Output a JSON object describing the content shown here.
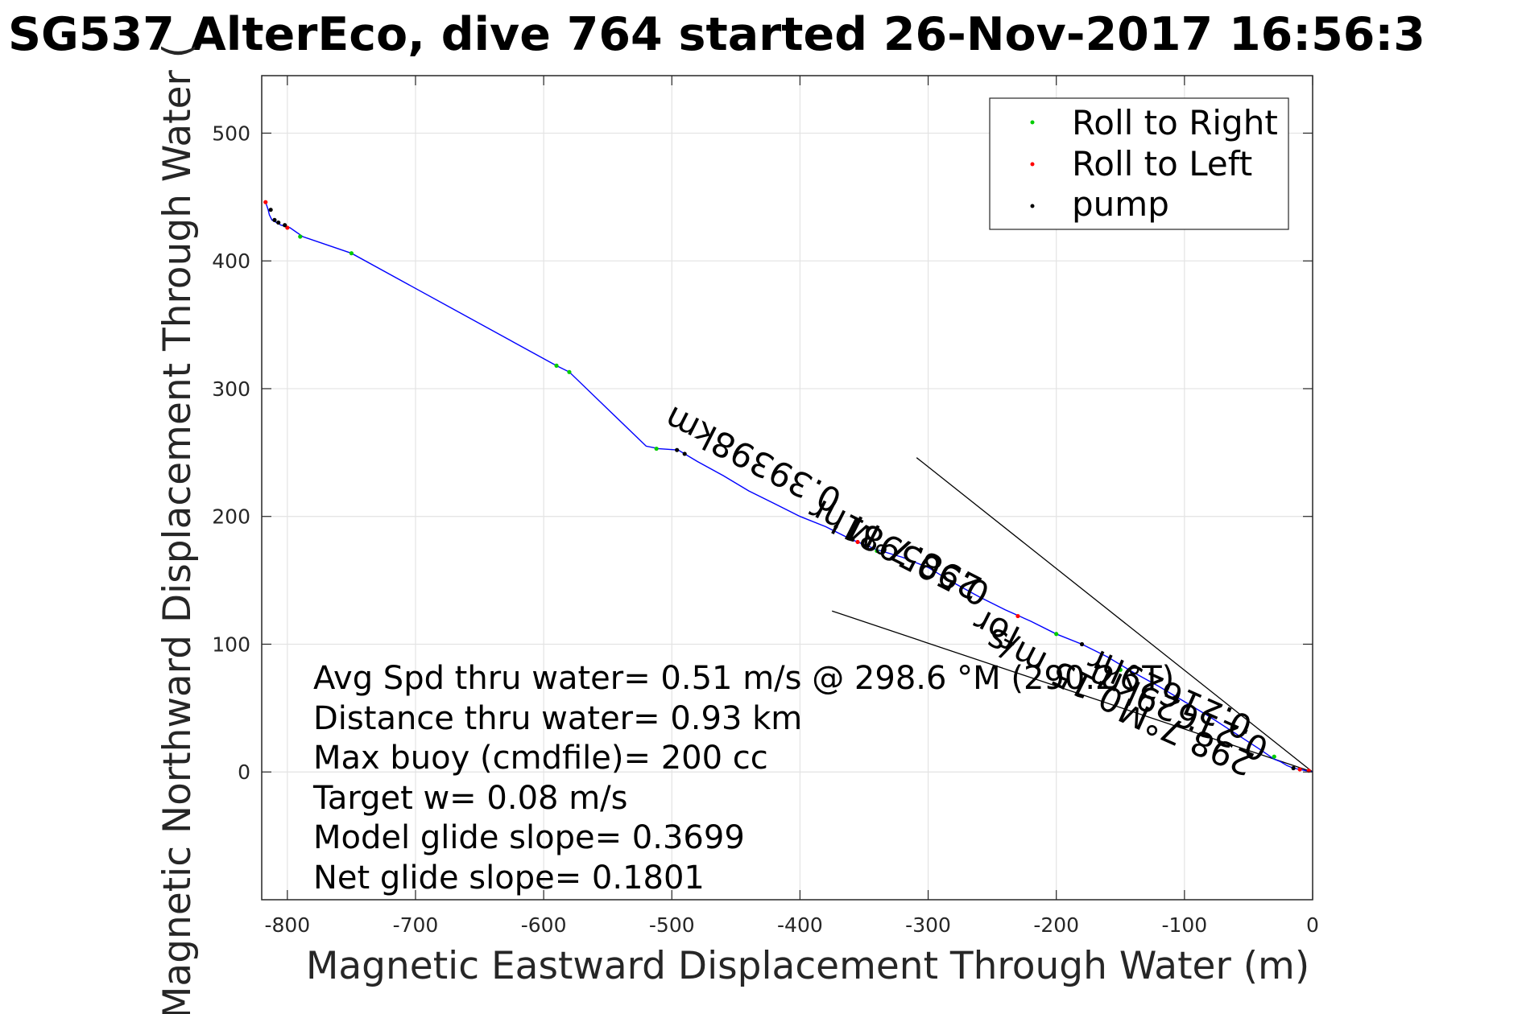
{
  "chart_data": {
    "type": "line",
    "title": "SG537 AlterEco, dive 764 started 26-Nov-2017 16:56:3",
    "xlabel": "Magnetic Eastward Displacement Through Water (m)",
    "ylabel": "Magnetic Northward Displacement Through Water (",
    "xlim": [
      -820,
      0
    ],
    "ylim": [
      -100,
      545
    ],
    "xticks": [
      -800,
      -700,
      -600,
      -500,
      -400,
      -300,
      -200,
      -100,
      0
    ],
    "yticks": [
      0,
      100,
      200,
      300,
      400,
      500
    ],
    "grid": true,
    "legend_position": "top-right",
    "legend": [
      {
        "label": "Roll to Right",
        "color": "#00cc00"
      },
      {
        "label": "Roll to Left",
        "color": "#ff0000"
      },
      {
        "label": "pump",
        "color": "#000000"
      }
    ],
    "series": [
      {
        "name": "track",
        "color": "#0000ff",
        "x": [
          0,
          -5,
          -10,
          -15,
          -20,
          -25,
          -30,
          -40,
          -60,
          -80,
          -100,
          -120,
          -140,
          -160,
          -180,
          -200,
          -220,
          -240,
          -260,
          -280,
          -300,
          -320,
          -340,
          -360,
          -380,
          -400,
          -420,
          -440,
          -460,
          -480,
          -495,
          -510,
          -520,
          -580,
          -590,
          -750,
          -788,
          -798,
          -805,
          -812,
          -814,
          -815,
          -816,
          -817
        ],
        "y": [
          0,
          1,
          2,
          3,
          5,
          8,
          10,
          17,
          30,
          43,
          55,
          67,
          78,
          90,
          100,
          108,
          118,
          127,
          137,
          148,
          160,
          168,
          174,
          182,
          192,
          200,
          210,
          220,
          232,
          243,
          252,
          253,
          255,
          313,
          318,
          406,
          419,
          426,
          428,
          432,
          436,
          440,
          443,
          446
        ]
      }
    ],
    "roll_right": {
      "x": [
        -512,
        -590,
        -580,
        -750,
        -790,
        -340,
        -200,
        -150,
        -60,
        -30
      ],
      "y": [
        253,
        318,
        313,
        406,
        419,
        173,
        108,
        80,
        35,
        12
      ]
    },
    "roll_left": {
      "x": [
        -817,
        -800,
        -355,
        -230,
        -10,
        -3
      ],
      "y": [
        446,
        426,
        180,
        122,
        2,
        1
      ]
    },
    "pump": {
      "x": [
        -813,
        -810,
        -807,
        -802,
        -496,
        -490,
        -372,
        -180,
        -15
      ],
      "y": [
        440,
        432,
        430,
        428,
        252,
        249,
        192,
        100,
        3
      ]
    },
    "heading_lines": [
      {
        "x": [
          0,
          -309
        ],
        "y": [
          0,
          246
        ]
      },
      {
        "x": [
          0,
          -375
        ],
        "y": [
          0,
          126
        ]
      }
    ],
    "annotations": [
      "0.39398km",
      "0.505981hr",
      "298.7°M",
      "0.21629hr",
      "298.7°M",
      "0.15 m/s",
      "for",
      "0.21629km"
    ],
    "stats": [
      "Avg Spd thru water=  0.51 m/s @ 298.6 °M (290.2 °T)",
      "Distance thru water=  0.93 km",
      "Max buoy (cmdfile)= 200 cc",
      "Target w= 0.08 m/s",
      "Model glide slope= 0.3699",
      "Net glide slope= 0.1801"
    ]
  }
}
